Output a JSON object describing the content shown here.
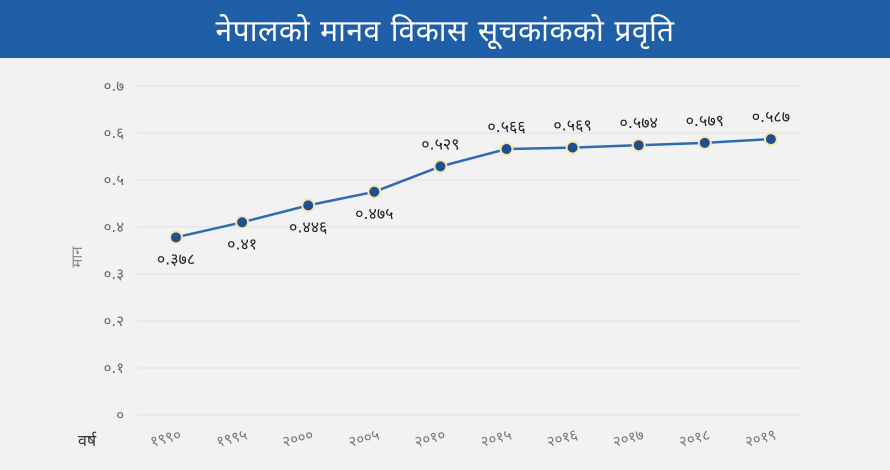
{
  "chart_data": {
    "type": "line",
    "title": "नेपालको मानव विकास सूचकांकको प्रवृति",
    "xlabel": "वर्ष",
    "ylabel": "मान",
    "categories": [
      "१९९०",
      "१९९५",
      "२०००",
      "२००५",
      "२०१०",
      "२०१५",
      "२०१६",
      "२०१७",
      "२०१८",
      "२०१९"
    ],
    "series": [
      {
        "values": [
          0.378,
          0.41,
          0.446,
          0.475,
          0.529,
          0.566,
          0.569,
          0.574,
          0.579,
          0.587
        ],
        "labels": [
          "०.३७८",
          "०.४१",
          "०.४४६",
          "०.४७५",
          "०.५२९",
          "०.५६६",
          "०.५६९",
          "०.५७४",
          "०.५७९",
          "०.५८७"
        ]
      }
    ],
    "ylim": [
      0,
      0.7
    ],
    "yticks": [
      0,
      0.1,
      0.2,
      0.3,
      0.4,
      0.5,
      0.6,
      0.7
    ],
    "ytick_labels": [
      "०",
      "०.१",
      "०.२",
      "०.३",
      "०.४",
      "०.५",
      "०.६",
      "०.७"
    ],
    "grid": true,
    "legend": "none",
    "line_color": "#2e6bb0",
    "marker_fill": "#1f4f8f",
    "marker_ring": "#f3e7b0",
    "grid_color": "#e0e0e0"
  }
}
